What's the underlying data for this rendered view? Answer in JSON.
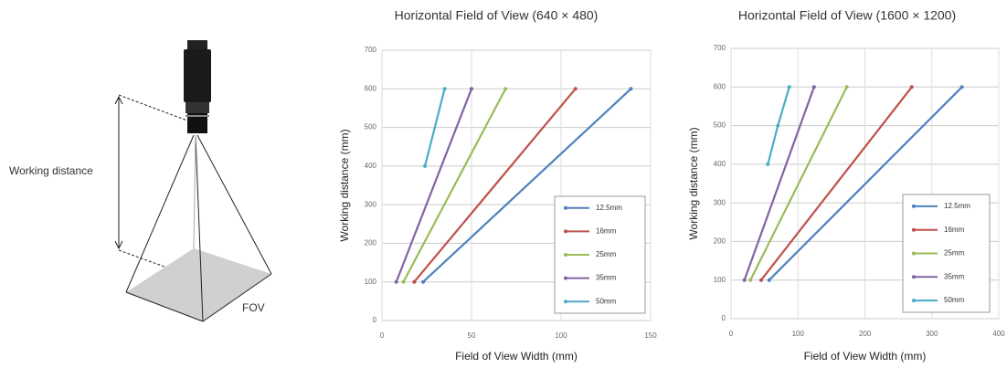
{
  "diagram": {
    "working_distance_label": "Working distance",
    "fov_label": "FOV"
  },
  "chart_data": [
    {
      "type": "line",
      "title": "Horizontal Field of View (640 × 480)",
      "x_label": "Field of View Width (mm)",
      "y_label": "Working distance (mm)",
      "xlim": [
        0,
        150
      ],
      "xticks": [
        0,
        50,
        100,
        150
      ],
      "ylim": [
        0,
        700
      ],
      "yticks": [
        0,
        100,
        200,
        300,
        400,
        500,
        600,
        700
      ],
      "grid": true,
      "legend": "lower right",
      "series": [
        {
          "name": "12.5mm",
          "color": "#4f81bd",
          "x": [
            23,
            139
          ],
          "values": [
            100,
            600
          ]
        },
        {
          "name": "16mm",
          "color": "#c0504d",
          "x": [
            18,
            108
          ],
          "values": [
            100,
            600
          ]
        },
        {
          "name": "25mm",
          "color": "#9bbb59",
          "x": [
            12,
            69
          ],
          "values": [
            100,
            600
          ]
        },
        {
          "name": "35mm",
          "color": "#8064a2",
          "x": [
            8,
            50
          ],
          "values": [
            100,
            600
          ]
        },
        {
          "name": "50mm",
          "color": "#4bacc6",
          "x": [
            24,
            35
          ],
          "values": [
            400,
            600
          ]
        }
      ]
    },
    {
      "type": "line",
      "title": "Horizontal Field of View (1600 × 1200)",
      "x_label": "Field of View Width (mm)",
      "y_label": "Working distance (mm)",
      "xlim": [
        0,
        400
      ],
      "xticks": [
        0,
        100,
        200,
        300,
        400
      ],
      "ylim": [
        0,
        700
      ],
      "yticks": [
        0,
        100,
        200,
        300,
        400,
        500,
        600,
        700
      ],
      "grid": true,
      "legend": "lower right",
      "series": [
        {
          "name": "12.5mm",
          "color": "#4f81bd",
          "x": [
            57,
            345
          ],
          "values": [
            100,
            600
          ]
        },
        {
          "name": "16mm",
          "color": "#c0504d",
          "x": [
            45,
            270
          ],
          "values": [
            100,
            600
          ]
        },
        {
          "name": "25mm",
          "color": "#9bbb59",
          "x": [
            29,
            173
          ],
          "values": [
            100,
            600
          ]
        },
        {
          "name": "35mm",
          "color": "#8064a2",
          "x": [
            20,
            124
          ],
          "values": [
            100,
            600
          ]
        },
        {
          "name": "50mm",
          "color": "#4bacc6",
          "x": [
            55,
            70,
            87
          ],
          "values": [
            400,
            500,
            600
          ]
        }
      ]
    }
  ]
}
